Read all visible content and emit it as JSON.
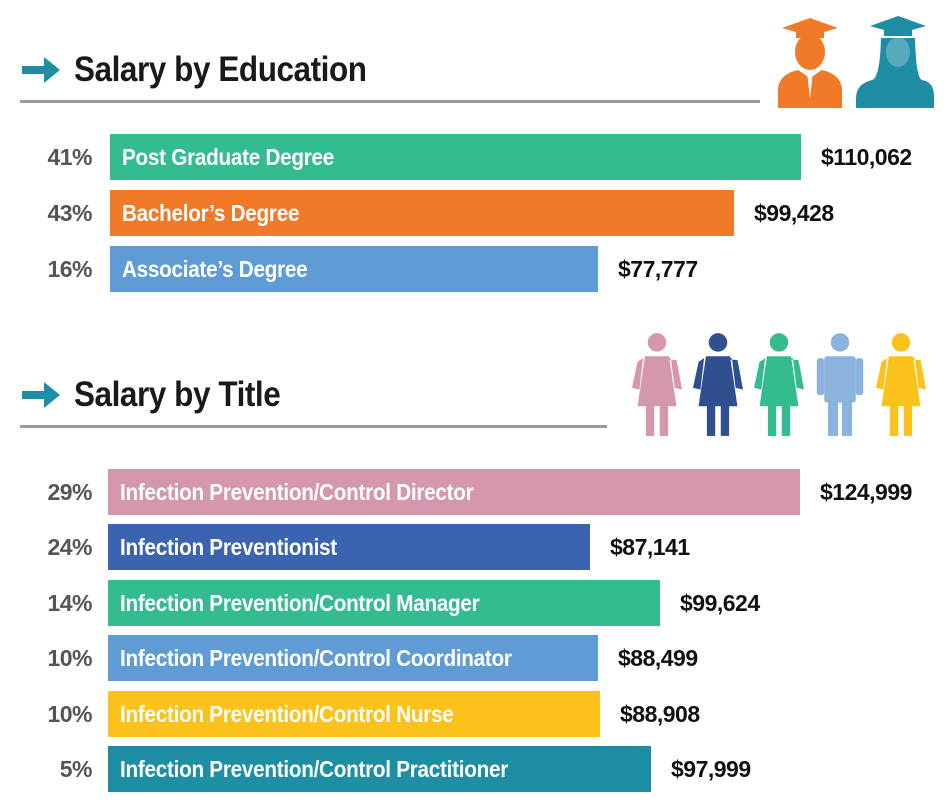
{
  "chart_data": [
    {
      "type": "bar",
      "title": "Salary by Education",
      "categories": [
        "Post Graduate Degree",
        "Bachelor’s Degree",
        "Associate’s Degree"
      ],
      "values": [
        110062,
        99428,
        77777
      ],
      "value_labels": [
        "$110,062",
        "$99,428",
        "$77,777"
      ],
      "shares": [
        "41%",
        "43%",
        "16%"
      ],
      "colors": [
        "#35bb91",
        "#f07a28",
        "#5f9bd4"
      ]
    },
    {
      "type": "bar",
      "title": "Salary by Title",
      "categories": [
        "Infection Prevention/Control Director",
        "Infection Preventionist",
        "Infection Prevention/Control Manager",
        "Infection Prevention/Control Coordinator",
        "Infection Prevention/Control Nurse",
        "Infection Prevention/Control Practitioner"
      ],
      "values": [
        124999,
        87141,
        99624,
        88499,
        88908,
        97999
      ],
      "value_labels": [
        "$124,999",
        "$87,141",
        "$99,624",
        "$88,499",
        "$88,908",
        "$97,999"
      ],
      "shares": [
        "29%",
        "24%",
        "14%",
        "10%",
        "10%",
        "5%"
      ],
      "colors": [
        "#d597ad",
        "#3a64b0",
        "#35bb91",
        "#5f9bd4",
        "#fbc21c",
        "#1e8ea5"
      ]
    }
  ],
  "accent": "#1e8ea5"
}
